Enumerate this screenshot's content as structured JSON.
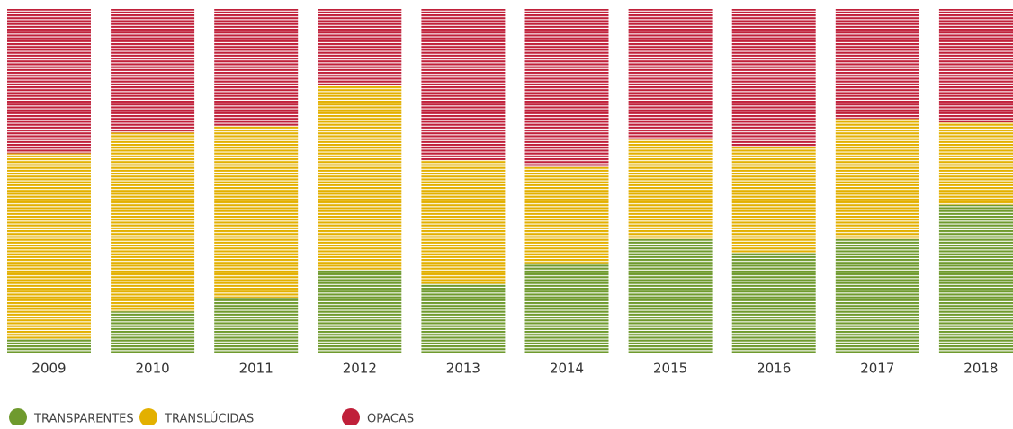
{
  "chart_data": {
    "type": "stacked_bar_100",
    "categories": [
      "2009",
      "2010",
      "2011",
      "2012",
      "2013",
      "2014",
      "2015",
      "2016",
      "2017",
      "2018"
    ],
    "series": [
      {
        "name": "TRANSPARENTES",
        "color": "#6f9a2e",
        "values": [
          4,
          12,
          16,
          24,
          20,
          26,
          33,
          29,
          33,
          43
        ]
      },
      {
        "name": "TRANSLÚCIDAS",
        "color": "#e3b000",
        "values": [
          54,
          52,
          50,
          54,
          36,
          28,
          29,
          31,
          35,
          24
        ]
      },
      {
        "name": "OPACAS",
        "color": "#c0203a",
        "values": [
          42,
          36,
          34,
          22,
          44,
          46,
          38,
          40,
          32,
          33
        ]
      }
    ],
    "ylim": [
      0,
      100
    ],
    "legend": "bottom-left"
  }
}
